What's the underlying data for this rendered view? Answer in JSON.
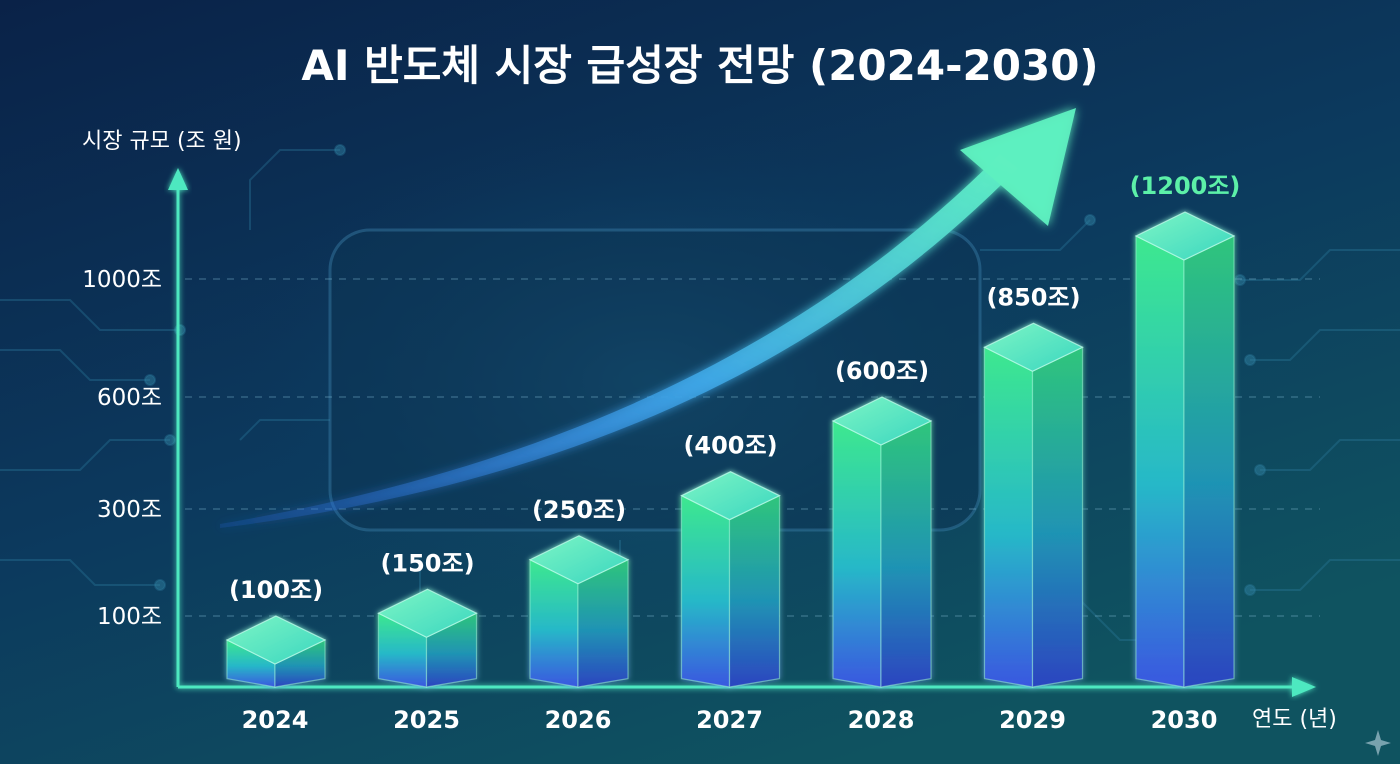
{
  "chart_data": {
    "type": "bar",
    "title": "AI 반도체 시장 급성장 전망 (2024-2030)",
    "ylabel": "시장 규모 (조 원)",
    "xlabel": "연도 (년)",
    "categories": [
      "2024",
      "2025",
      "2026",
      "2027",
      "2028",
      "2029",
      "2030"
    ],
    "values": [
      100,
      150,
      250,
      400,
      600,
      850,
      1200
    ],
    "data_labels": [
      "(100조)",
      "(150조)",
      "(250조)",
      "(400조)",
      "(600조)",
      "(850조)",
      "(1200조)"
    ],
    "y_ticks": [
      {
        "value": 100,
        "label": "100조"
      },
      {
        "value": 300,
        "label": "300조"
      },
      {
        "value": 600,
        "label": "600조"
      },
      {
        "value": 1000,
        "label": "1000조"
      }
    ],
    "grid": true,
    "trend_arrow": true,
    "colors": {
      "background_top": "#0b2a4f",
      "background_bottom": "#0f4a5c",
      "bar_top": "#3de88f",
      "bar_bottom": "#3a57e0",
      "axis": "#4de8c0",
      "highlight_label": "#5cf0a8"
    }
  }
}
